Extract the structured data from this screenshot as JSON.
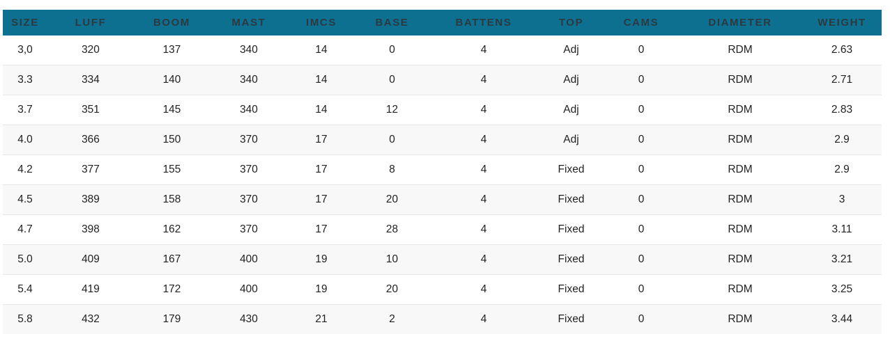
{
  "table": {
    "headers": [
      "SIZE",
      "LUFF",
      "BOOM",
      "MAST",
      "IMCS",
      "BASE",
      "BATTENS",
      "TOP",
      "CAMS",
      "DIAMETER",
      "WEIGHT"
    ],
    "rows": [
      [
        "3,0",
        "320",
        "137",
        "340",
        "14",
        "0",
        "4",
        "Adj",
        "0",
        "RDM",
        "2.63"
      ],
      [
        "3.3",
        "334",
        "140",
        "340",
        "14",
        "0",
        "4",
        "Adj",
        "0",
        "RDM",
        "2.71"
      ],
      [
        "3.7",
        "351",
        "145",
        "340",
        "14",
        "12",
        "4",
        "Adj",
        "0",
        "RDM",
        "2.83"
      ],
      [
        "4.0",
        "366",
        "150",
        "370",
        "17",
        "0",
        "4",
        "Adj",
        "0",
        "RDM",
        "2.9"
      ],
      [
        "4.2",
        "377",
        "155",
        "370",
        "17",
        "8",
        "4",
        "Fixed",
        "0",
        "RDM",
        "2.9"
      ],
      [
        "4.5",
        "389",
        "158",
        "370",
        "17",
        "20",
        "4",
        "Fixed",
        "0",
        "RDM",
        "3"
      ],
      [
        "4.7",
        "398",
        "162",
        "370",
        "17",
        "28",
        "4",
        "Fixed",
        "0",
        "RDM",
        "3.11"
      ],
      [
        "5.0",
        "409",
        "167",
        "400",
        "19",
        "10",
        "4",
        "Fixed",
        "0",
        "RDM",
        "3.21"
      ],
      [
        "5.4",
        "419",
        "172",
        "400",
        "19",
        "20",
        "4",
        "Fixed",
        "0",
        "RDM",
        "3.25"
      ],
      [
        "5.8",
        "432",
        "179",
        "430",
        "21",
        "2",
        "4",
        "Fixed",
        "0",
        "RDM",
        "3.44"
      ]
    ]
  },
  "colors": {
    "header_background": "#0e7091",
    "header_text": "#2c3a40",
    "row_alt_background": "#f8f8f8",
    "row_divider": "#e6e6e6"
  }
}
